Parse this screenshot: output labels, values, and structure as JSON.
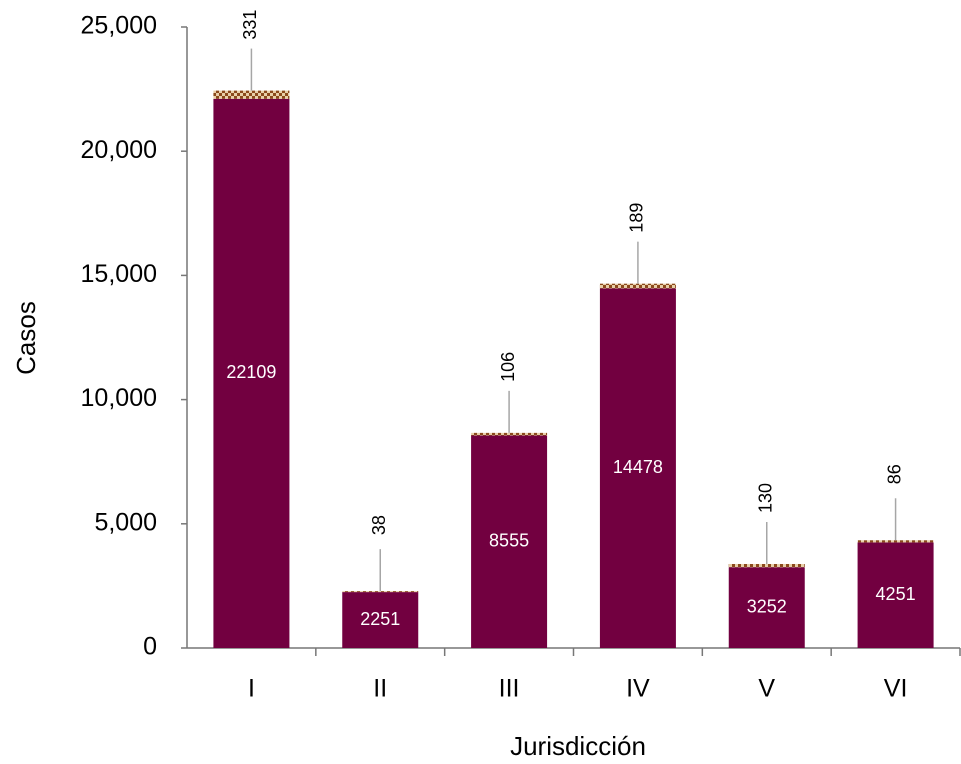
{
  "chart_data": {
    "type": "stacked_bar",
    "x_label": "Jurisdicción",
    "y_label": "Casos",
    "categories": [
      "I",
      "II",
      "III",
      "IV",
      "V",
      "VI"
    ],
    "series": [
      {
        "color": "#720040",
        "values": [
          22109,
          2251,
          8555,
          14478,
          3252,
          4251
        ]
      },
      {
        "color": "#8b4a1c",
        "pattern": "checker",
        "values": [
          331,
          38,
          106,
          189,
          130,
          86
        ]
      }
    ],
    "ylim": [
      0,
      25000
    ],
    "yticks": [
      0,
      {
        "value": 5000,
        "label": "5,000"
      },
      {
        "value": 10000,
        "label": "10,000"
      },
      {
        "value": 15000,
        "label": "15,000"
      },
      {
        "value": 20000,
        "label": "20,000"
      },
      {
        "value": 25000,
        "label": "25,000"
      }
    ]
  }
}
